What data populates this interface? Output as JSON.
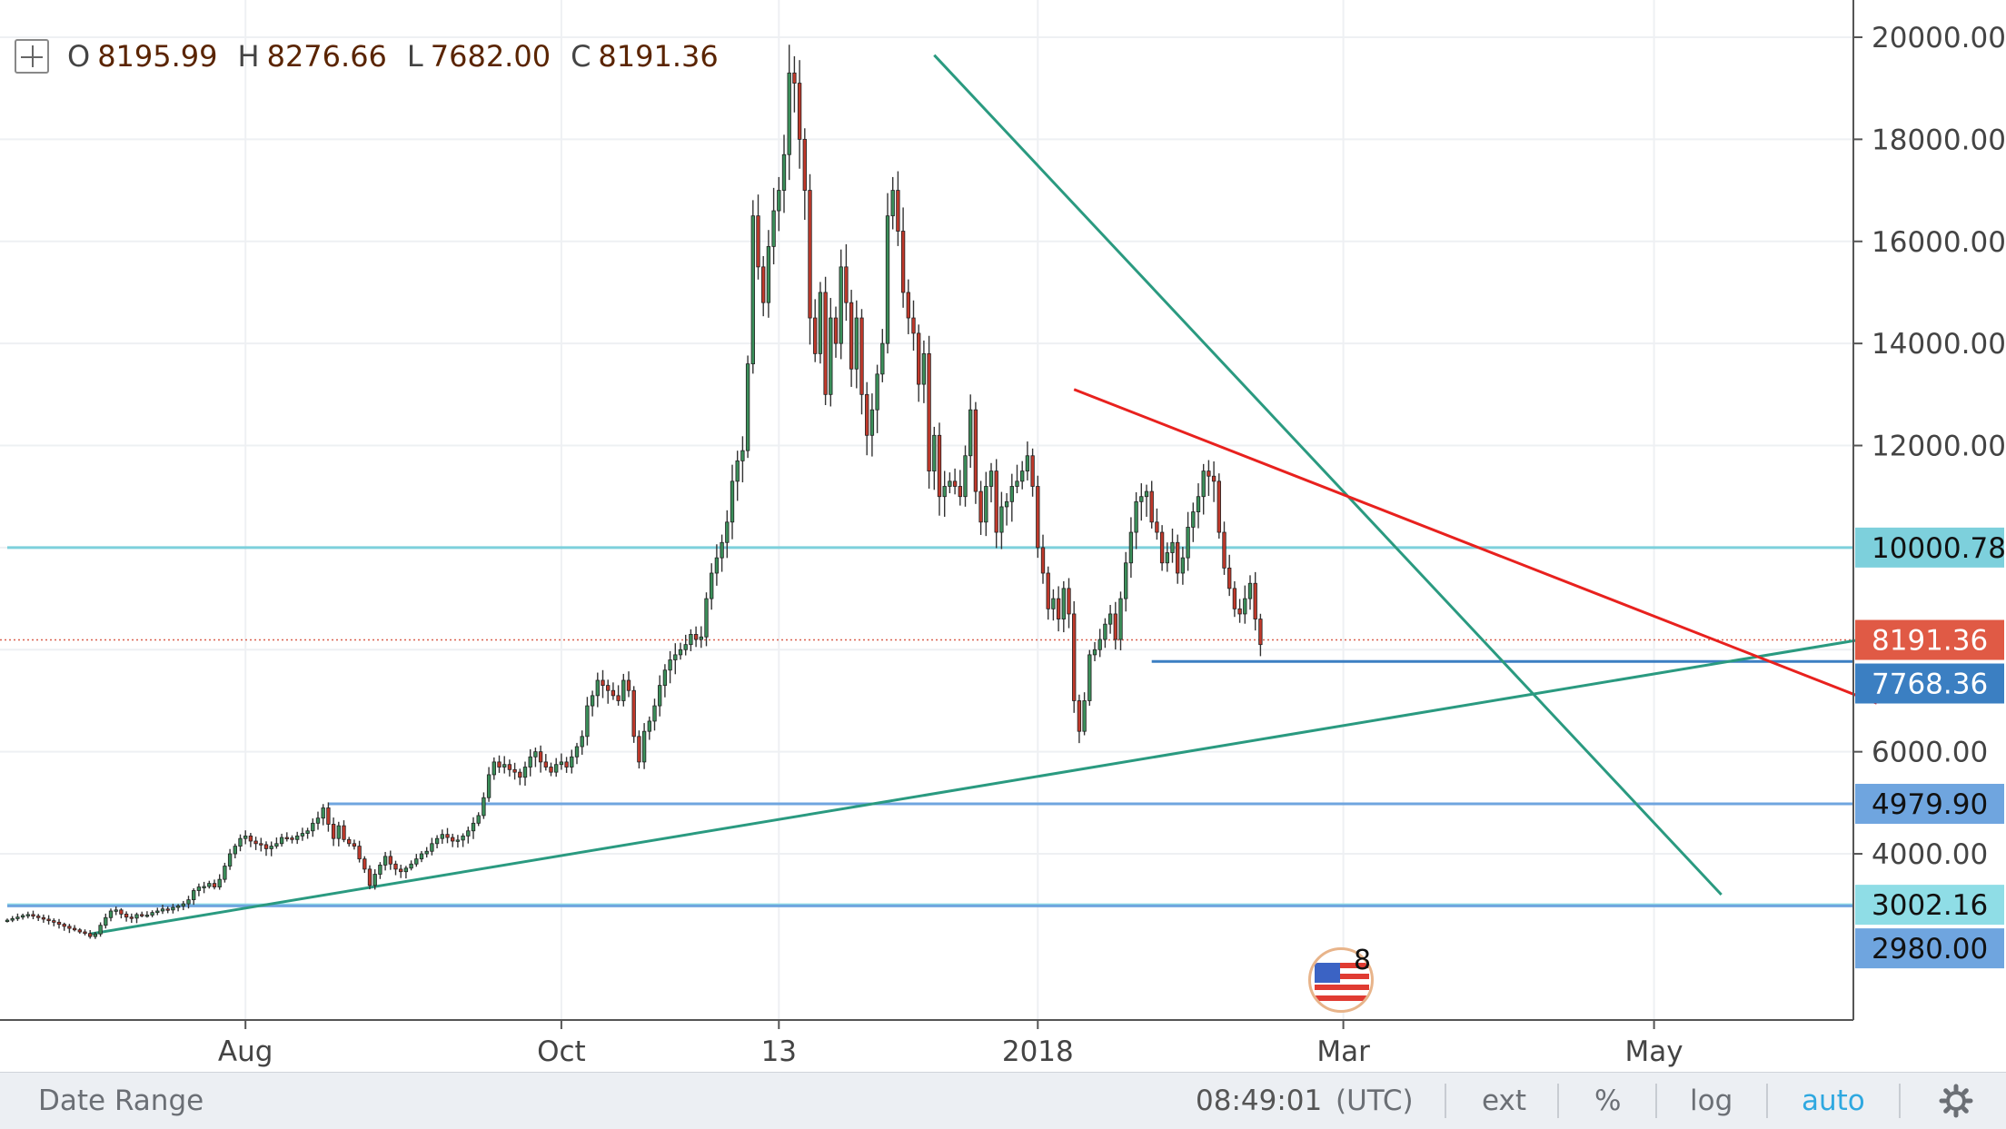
{
  "ohlc": {
    "o_label": "O",
    "o": "8195.99",
    "h_label": "H",
    "h": "8276.66",
    "l_label": "L",
    "l": "7682.00",
    "c_label": "C",
    "c": "8191.36"
  },
  "bottom_bar": {
    "date_range": "Date Range",
    "time": "08:49:01",
    "tz": "(UTC)",
    "ext": "ext",
    "percent": "%",
    "log": "log",
    "auto": "auto"
  },
  "badge": {
    "count": "8"
  },
  "chart_data": {
    "type": "candlestick",
    "yaxis": {
      "min": 2500,
      "max": 20500,
      "ticks": [
        20000,
        18000,
        16000,
        14000,
        12000,
        6000,
        4000
      ],
      "tick_labels": [
        "20000.00",
        "18000.00",
        "16000.00",
        "14000.00",
        "12000.00",
        "6000.00",
        "4000.00"
      ]
    },
    "xaxis": {
      "ticks": [
        {
          "day": 46,
          "label": "Aug"
        },
        {
          "day": 107,
          "label": "Oct"
        },
        {
          "day": 149,
          "label": "13"
        },
        {
          "day": 199,
          "label": "2018"
        },
        {
          "day": 258,
          "label": "Mar"
        },
        {
          "day": 318,
          "label": "May"
        }
      ]
    },
    "price_labels": [
      {
        "value": 10000.78,
        "label": "10000.78",
        "color": "#7dd0dc",
        "text_color": "#111111"
      },
      {
        "value": 8191.36,
        "label": "8191.36",
        "color": "#e05a45",
        "text_color": "#ffffff"
      },
      {
        "value": 7768.36,
        "label": "7768.36",
        "color": "#3b7fc2",
        "text_color": "#ffffff"
      },
      {
        "value": 4979.9,
        "label": "4979.90",
        "color": "#6fa5df",
        "text_color": "#111111"
      },
      {
        "value": 3002.16,
        "label": "3002.16",
        "color": "#8fdde6",
        "text_color": "#111111"
      },
      {
        "value": 2980.0,
        "label": "2980.00",
        "color": "#6fa5df",
        "text_color": "#111111"
      }
    ],
    "horizontal_lines": [
      {
        "value": 10000.78,
        "color": "#7dd0dc",
        "from_day": 0
      },
      {
        "value": 4979.9,
        "color": "#6fa5df",
        "from_day": 62
      },
      {
        "value": 3002.16,
        "color": "#8fdde6",
        "from_day": 0
      },
      {
        "value": 2980.0,
        "color": "#6fa5df",
        "from_day": 0
      },
      {
        "value": 7768.36,
        "color": "#3b7fc2",
        "from_day": 221
      }
    ],
    "trend_lines": [
      {
        "color": "#2a9a80",
        "from": {
          "day": 179,
          "value": 19650
        },
        "to": {
          "day": 331,
          "value": 3200
        }
      },
      {
        "color": "#2a9a80",
        "from": {
          "day": 16,
          "value": 2430
        },
        "to": {
          "day": 361,
          "value": 8250
        }
      },
      {
        "color": "#e8211e",
        "from": {
          "day": 206,
          "value": 13100
        },
        "to": {
          "day": 361,
          "value": 6950
        }
      }
    ],
    "last_close": 8191.36,
    "series_colors": {
      "up": "#3b8f5a",
      "down": "#c0392b"
    },
    "close": [
      2700,
      2730,
      2760,
      2790,
      2810,
      2780,
      2750,
      2720,
      2690,
      2660,
      2620,
      2580,
      2540,
      2510,
      2470,
      2440,
      2380,
      2430,
      2600,
      2750,
      2880,
      2900,
      2820,
      2760,
      2740,
      2810,
      2790,
      2800,
      2850,
      2880,
      2920,
      2900,
      2950,
      2980,
      3020,
      3100,
      3280,
      3350,
      3360,
      3420,
      3350,
      3500,
      3760,
      4000,
      4150,
      4300,
      4350,
      4250,
      4200,
      4180,
      4100,
      4150,
      4200,
      4320,
      4310,
      4280,
      4350,
      4400,
      4450,
      4600,
      4700,
      4900,
      4580,
      4300,
      4550,
      4280,
      4200,
      4150,
      3900,
      3700,
      3380,
      3600,
      3780,
      3950,
      3800,
      3700,
      3650,
      3720,
      3800,
      3900,
      4000,
      4050,
      4200,
      4300,
      4380,
      4320,
      4250,
      4270,
      4350,
      4450,
      4600,
      4750,
      5100,
      5550,
      5800,
      5700,
      5750,
      5650,
      5600,
      5500,
      5700,
      5900,
      6000,
      5800,
      5700,
      5600,
      5750,
      5800,
      5700,
      5900,
      6100,
      6300,
      6900,
      7100,
      7400,
      7300,
      7200,
      7100,
      7000,
      7400,
      7200,
      6300,
      5800,
      6400,
      6600,
      6900,
      7300,
      7600,
      7800,
      7900,
      8000,
      8100,
      8300,
      8200,
      8250,
      9000,
      9500,
      9800,
      10100,
      10500,
      11300,
      11700,
      11900,
      13600,
      16500,
      15500,
      14800,
      15900,
      16600,
      17000,
      17700,
      19300,
      19100,
      18000,
      17000,
      14500,
      13800,
      15000,
      13000,
      14500,
      14000,
      15500,
      14800,
      13500,
      14500,
      13000,
      12200,
      12700,
      13400,
      14000,
      16500,
      17000,
      16200,
      15000,
      14500,
      14200,
      13200,
      13800,
      11500,
      12200,
      11000,
      11200,
      11300,
      11200,
      11000,
      11800,
      12700,
      11100,
      10500,
      11200,
      11500,
      10300,
      10800,
      10900,
      11200,
      11300,
      11500,
      11800,
      11200,
      10000,
      9500,
      8800,
      9000,
      8600,
      9200,
      8700,
      7000,
      6400,
      7000,
      7900,
      8000,
      8200,
      8500,
      8700,
      8200,
      9000,
      9700,
      10300,
      10900,
      11000,
      11100,
      10500,
      10300,
      9700,
      9900,
      10100,
      9500,
      9800,
      10400,
      10700,
      11000,
      11500,
      11400,
      11300,
      10300,
      9600,
      9200,
      8800,
      8700,
      9000,
      9300,
      8600,
      8100
    ]
  }
}
